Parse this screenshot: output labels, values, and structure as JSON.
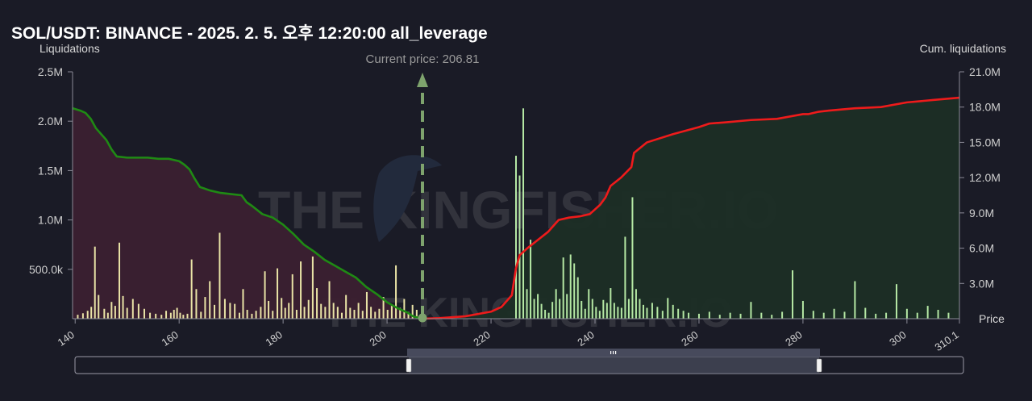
{
  "chart_data": {
    "type": "bar",
    "title": "SOL/USDT: BINANCE - 2025. 2. 5. 오후 12:20:00 all_leverage",
    "ylabel_left": "Liquidations",
    "ylabel_right": "Cum. liquidations",
    "xlabel": "Price",
    "current_price_label": "Current price: 206.81",
    "current_price": 206.81,
    "xlim": [
      139.5,
      310.1
    ],
    "ylim_left": [
      0,
      2500000
    ],
    "ylim_right": [
      0,
      21000000
    ],
    "x_ticks": [
      "140",
      "160",
      "180",
      "200",
      "220",
      "240",
      "260",
      "280",
      "300",
      "310.1"
    ],
    "y_ticks_left": [
      "500.0k",
      "1.0M",
      "1.5M",
      "2.0M",
      "2.5M"
    ],
    "y_ticks_right": [
      "3.0M",
      "6.0M",
      "9.0M",
      "12.0M",
      "15.0M",
      "18.0M",
      "21.0M"
    ],
    "watermark": "THE KINGFISHER.IO",
    "colors": {
      "background": "#1a1b26",
      "short_bars": "#e9e3a6",
      "long_bars": "#b5e8a4",
      "cum_short_line": "#1f8a14",
      "cum_long_line": "#ee1b1b",
      "cum_short_fill": "#3b2030",
      "cum_long_fill": "#1c2e25",
      "current_price_marker": "#7ea36d"
    },
    "series_bars": [
      {
        "side": "below",
        "x": [
          140.5,
          141.5,
          142.4,
          143.1,
          143.8,
          144.5,
          145.6,
          146.3,
          147.0,
          147.7,
          148.5,
          149.2,
          150.0,
          151.1,
          152.2,
          153.3,
          154.4,
          155.5,
          156.6,
          157.5,
          158.4,
          159.0,
          159.6,
          160.2,
          160.8,
          161.6,
          162.4,
          163.3,
          164.2,
          165.0,
          165.9,
          166.8,
          167.8,
          168.8,
          169.8,
          170.7,
          171.6,
          172.3,
          173.1,
          174.0,
          174.8,
          175.7,
          176.5,
          177.2,
          178.0,
          178.9,
          179.7,
          180.4,
          181.1,
          181.8,
          182.6,
          183.4,
          184.1,
          184.9,
          185.7,
          186.5,
          187.3,
          188.1,
          188.9,
          189.7,
          190.5,
          191.3,
          192.1,
          192.9,
          193.7,
          194.5,
          195.3,
          196.1,
          196.9,
          197.7,
          198.5,
          199.3,
          200.1,
          200.9,
          201.7,
          202.5,
          203.3,
          204.1,
          204.9,
          205.7
        ],
        "values": [
          40000,
          55000,
          80000,
          120000,
          730000,
          240000,
          100000,
          60000,
          170000,
          130000,
          770000,
          230000,
          110000,
          200000,
          150000,
          100000,
          60000,
          50000,
          40000,
          80000,
          60000,
          90000,
          110000,
          60000,
          40000,
          50000,
          600000,
          300000,
          70000,
          220000,
          380000,
          140000,
          870000,
          200000,
          160000,
          150000,
          60000,
          300000,
          90000,
          50000,
          80000,
          120000,
          480000,
          180000,
          80000,
          510000,
          210000,
          110000,
          160000,
          450000,
          90000,
          580000,
          120000,
          190000,
          630000,
          310000,
          150000,
          120000,
          380000,
          160000,
          120000,
          60000,
          240000,
          110000,
          90000,
          160000,
          80000,
          270000,
          120000,
          70000,
          100000,
          220000,
          90000,
          130000,
          540000,
          110000,
          200000,
          70000,
          140000,
          90000
        ]
      },
      {
        "side": "above",
        "x": [
          224.8,
          225.5,
          226.2,
          226.9,
          227.6,
          228.3,
          229.0,
          229.7,
          230.4,
          231.1,
          231.8,
          232.5,
          233.2,
          233.9,
          234.6,
          235.3,
          236.0,
          236.7,
          237.4,
          238.1,
          238.8,
          239.5,
          240.2,
          240.9,
          241.6,
          242.3,
          243.0,
          243.7,
          244.4,
          245.1,
          245.8,
          246.5,
          247.2,
          247.9,
          248.6,
          249.3,
          250.0,
          251.0,
          252.0,
          253.0,
          254.0,
          255.0,
          256.0,
          257.0,
          258.0,
          260.0,
          262.0,
          264.0,
          266.0,
          268.0,
          270.0,
          272.0,
          274.0,
          276.0,
          278.0,
          280.0,
          282.0,
          284.0,
          286.0,
          288.0,
          290.0,
          292.0,
          294.0,
          296.0,
          298.0,
          300.0,
          302.0,
          304.0,
          306.0,
          308.0
        ],
        "values": [
          1650000,
          1450000,
          2130000,
          300000,
          800000,
          200000,
          250000,
          150000,
          90000,
          60000,
          170000,
          300000,
          200000,
          620000,
          250000,
          650000,
          560000,
          420000,
          180000,
          100000,
          300000,
          200000,
          120000,
          80000,
          190000,
          160000,
          310000,
          160000,
          120000,
          110000,
          830000,
          200000,
          1230000,
          300000,
          200000,
          140000,
          110000,
          160000,
          120000,
          80000,
          210000,
          140000,
          100000,
          80000,
          60000,
          50000,
          70000,
          40000,
          60000,
          50000,
          170000,
          60000,
          40000,
          70000,
          490000,
          180000,
          80000,
          60000,
          100000,
          70000,
          380000,
          110000,
          50000,
          60000,
          350000,
          100000,
          60000,
          130000,
          90000,
          60000
        ]
      }
    ],
    "series_cum": [
      {
        "side": "below",
        "x": [
          139.5,
          141,
          142,
          143,
          144,
          145,
          146,
          147,
          148,
          150,
          152,
          154,
          156,
          158,
          160,
          161,
          162,
          163,
          164,
          166,
          168,
          170,
          172,
          173,
          174,
          176,
          178,
          180,
          182,
          184,
          186,
          188,
          190,
          192,
          194,
          196,
          198,
          200,
          202,
          204,
          205,
          206.81
        ],
        "values": [
          17900000,
          17700000,
          17500000,
          17000000,
          16200000,
          15700000,
          15200000,
          14400000,
          13800000,
          13700000,
          13700000,
          13700000,
          13600000,
          13600000,
          13400000,
          13100000,
          12700000,
          11900000,
          11200000,
          10900000,
          10700000,
          10600000,
          10500000,
          9900000,
          9600000,
          8900000,
          8600000,
          8000000,
          7200000,
          6300000,
          5700000,
          5000000,
          4500000,
          4000000,
          3500000,
          2700000,
          2100000,
          1400000,
          900000,
          500000,
          200000,
          0
        ]
      },
      {
        "side": "above",
        "x": [
          206.81,
          210,
          215,
          220,
          222,
          224,
          224.8,
          225.5,
          227,
          229,
          231,
          233,
          235,
          237,
          239,
          241,
          242,
          243,
          245,
          247,
          247.5,
          250,
          255,
          260,
          262,
          265,
          270,
          275,
          280,
          281,
          283,
          285,
          290,
          295,
          300,
          305,
          310.1
        ],
        "values": [
          0,
          50000,
          200000,
          600000,
          1000000,
          2000000,
          4300000,
          5400000,
          6000000,
          6700000,
          7400000,
          8400000,
          8600000,
          8700000,
          8900000,
          9700000,
          10300000,
          11300000,
          12000000,
          12900000,
          14100000,
          15000000,
          15700000,
          16300000,
          16600000,
          16700000,
          16900000,
          17000000,
          17400000,
          17400000,
          17600000,
          17700000,
          17900000,
          18000000,
          18400000,
          18600000,
          18800000
        ]
      }
    ]
  }
}
